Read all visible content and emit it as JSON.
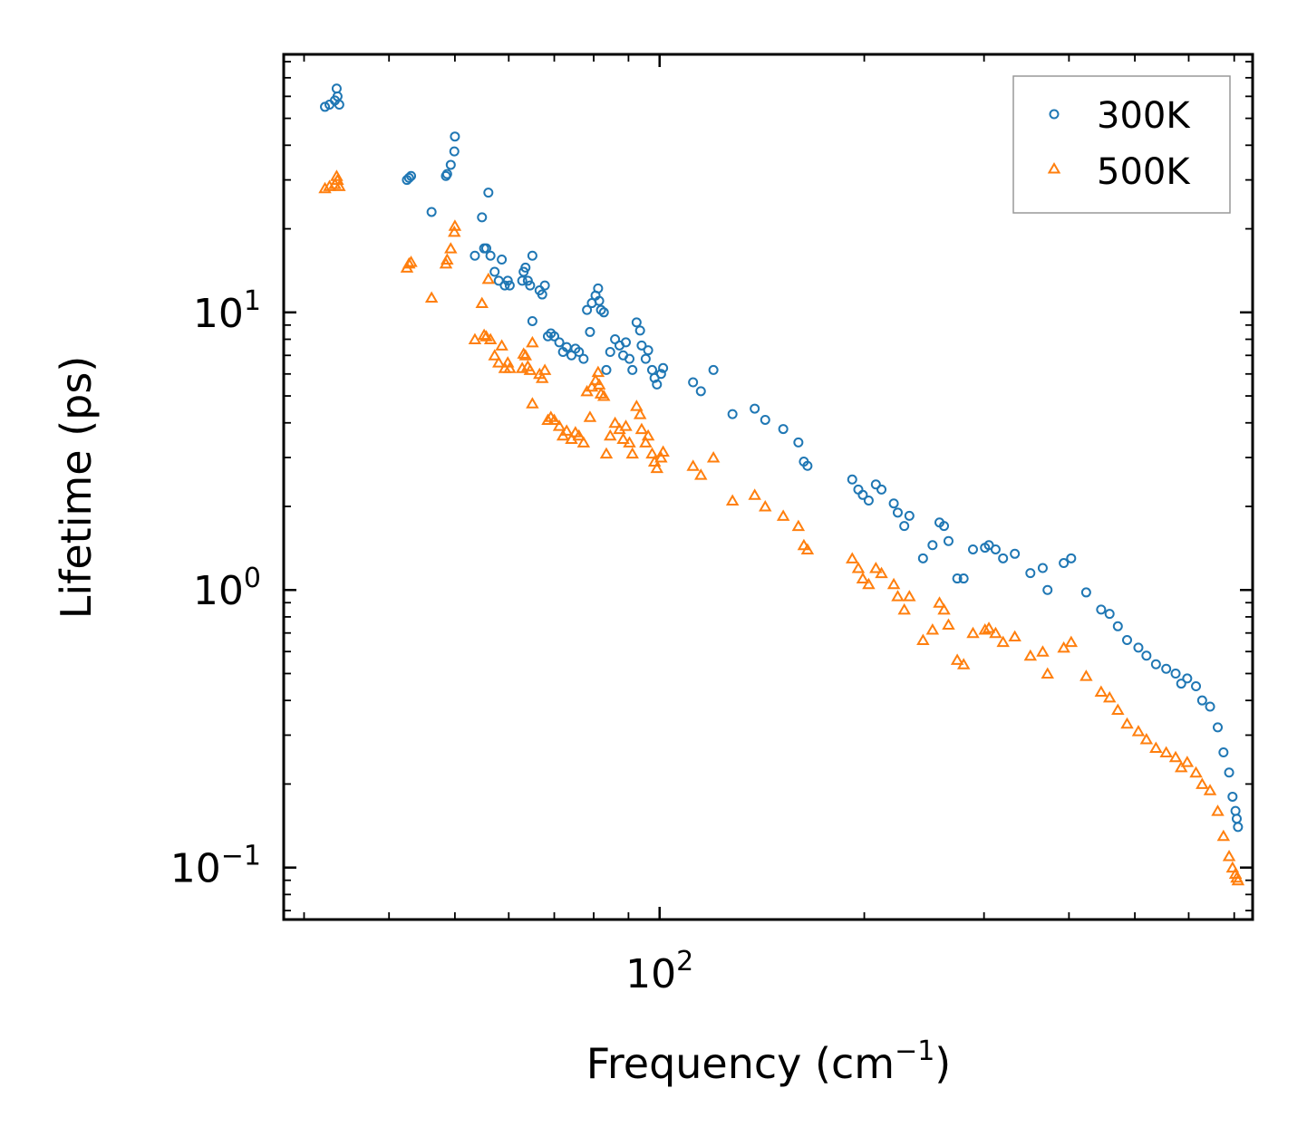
{
  "chart_data": {
    "type": "scatter",
    "title": "",
    "xlabel": "Frequency (cm",
    "xlabel_sup": "−1",
    "xlabel_end": ")",
    "ylabel": "Lifetime (ps)",
    "xscale": "log",
    "yscale": "log",
    "xlim": [
      28,
      745
    ],
    "ylim": [
      0.065,
      85
    ],
    "x_ticks": [
      {
        "base": "10",
        "exp": "2",
        "value": 100
      }
    ],
    "y_ticks": [
      {
        "base": "10",
        "exp": "−1",
        "value": 0.1
      },
      {
        "base": "10",
        "exp": "0",
        "value": 1
      },
      {
        "base": "10",
        "exp": "1",
        "value": 10
      }
    ],
    "legend_position": "top-right",
    "colors": {
      "s300": "#1f77b4",
      "s500": "#ff7f0e"
    },
    "series": [
      {
        "name": "300K",
        "marker": "circle-open",
        "color": "#1f77b4",
        "points": [
          [
            32.2,
            55
          ],
          [
            32.7,
            56
          ],
          [
            33.3,
            58
          ],
          [
            33.5,
            64
          ],
          [
            33.6,
            60
          ],
          [
            33.8,
            56
          ],
          [
            42.5,
            30
          ],
          [
            42.8,
            30.5
          ],
          [
            43.1,
            31
          ],
          [
            46.2,
            23
          ],
          [
            48.5,
            31
          ],
          [
            48.7,
            31.5
          ],
          [
            49.3,
            34
          ],
          [
            49.9,
            38
          ],
          [
            50,
            43
          ],
          [
            53.5,
            16
          ],
          [
            54.8,
            22
          ],
          [
            55.2,
            17
          ],
          [
            55.6,
            17
          ],
          [
            56,
            27
          ],
          [
            56.4,
            16
          ],
          [
            57.2,
            14
          ],
          [
            58,
            13
          ],
          [
            58.6,
            15.5
          ],
          [
            59.2,
            12.5
          ],
          [
            59.8,
            13
          ],
          [
            60.2,
            12.5
          ],
          [
            62.8,
            13
          ],
          [
            63.1,
            14
          ],
          [
            63.5,
            14.5
          ],
          [
            64,
            13
          ],
          [
            64.5,
            12.5
          ],
          [
            65,
            16
          ],
          [
            66.6,
            12
          ],
          [
            67.2,
            11.6
          ],
          [
            67.8,
            12.5
          ],
          [
            65,
            9.3
          ],
          [
            68.5,
            8.2
          ],
          [
            69.2,
            8.4
          ],
          [
            70,
            8.2
          ],
          [
            71.2,
            7.8
          ],
          [
            72.1,
            7.2
          ],
          [
            73,
            7.5
          ],
          [
            74.2,
            7
          ],
          [
            75.2,
            7.4
          ],
          [
            76.1,
            7.2
          ],
          [
            77.3,
            6.8
          ],
          [
            78.2,
            10.2
          ],
          [
            79,
            8.5
          ],
          [
            79.5,
            10.8
          ],
          [
            80.5,
            11.5
          ],
          [
            81.2,
            12.2
          ],
          [
            81.5,
            11
          ],
          [
            82,
            10.2
          ],
          [
            82.8,
            10
          ],
          [
            83.5,
            6.2
          ],
          [
            84.6,
            7.2
          ],
          [
            86,
            8
          ],
          [
            87.3,
            7.6
          ],
          [
            88.4,
            7
          ],
          [
            89.2,
            7.8
          ],
          [
            90.3,
            6.8
          ],
          [
            91.2,
            6.2
          ],
          [
            92.5,
            9.2
          ],
          [
            93.6,
            8.6
          ],
          [
            94.1,
            7.6
          ],
          [
            95.4,
            6.8
          ],
          [
            96.2,
            7.3
          ],
          [
            97.5,
            6.2
          ],
          [
            98.3,
            5.8
          ],
          [
            99.1,
            5.5
          ],
          [
            100.5,
            6
          ],
          [
            101.2,
            6.3
          ],
          [
            112,
            5.6
          ],
          [
            115,
            5.2
          ],
          [
            120,
            6.2
          ],
          [
            128,
            4.3
          ],
          [
            138,
            4.5
          ],
          [
            143,
            4.1
          ],
          [
            152,
            3.8
          ],
          [
            160,
            3.4
          ],
          [
            163,
            2.9
          ],
          [
            165,
            2.8
          ],
          [
            192,
            2.5
          ],
          [
            196,
            2.3
          ],
          [
            199,
            2.2
          ],
          [
            203,
            2.1
          ],
          [
            208,
            2.4
          ],
          [
            212,
            2.3
          ],
          [
            221,
            2.05
          ],
          [
            224,
            1.9
          ],
          [
            229,
            1.7
          ],
          [
            233,
            1.85
          ],
          [
            244,
            1.3
          ],
          [
            252,
            1.45
          ],
          [
            258,
            1.75
          ],
          [
            262,
            1.7
          ],
          [
            266,
            1.5
          ],
          [
            274,
            1.1
          ],
          [
            280,
            1.1
          ],
          [
            289,
            1.4
          ],
          [
            301,
            1.42
          ],
          [
            305,
            1.45
          ],
          [
            312,
            1.4
          ],
          [
            320,
            1.3
          ],
          [
            333,
            1.35
          ],
          [
            351,
            1.15
          ],
          [
            366,
            1.2
          ],
          [
            372,
            1
          ],
          [
            393,
            1.25
          ],
          [
            403,
            1.3
          ],
          [
            424,
            0.98
          ],
          [
            446,
            0.85
          ],
          [
            459,
            0.82
          ],
          [
            472,
            0.74
          ],
          [
            487,
            0.66
          ],
          [
            506,
            0.62
          ],
          [
            520,
            0.58
          ],
          [
            537,
            0.54
          ],
          [
            556,
            0.52
          ],
          [
            574,
            0.5
          ],
          [
            585,
            0.46
          ],
          [
            597,
            0.48
          ],
          [
            615,
            0.45
          ],
          [
            628,
            0.4
          ],
          [
            645,
            0.38
          ],
          [
            662,
            0.32
          ],
          [
            675,
            0.26
          ],
          [
            688,
            0.22
          ],
          [
            696,
            0.18
          ],
          [
            703,
            0.16
          ],
          [
            706,
            0.15
          ],
          [
            709,
            0.14
          ]
        ]
      },
      {
        "name": "500K",
        "marker": "triangle-open",
        "color": "#ff7f0e",
        "points": [
          [
            32.2,
            28
          ],
          [
            32.7,
            28.5
          ],
          [
            33.3,
            29
          ],
          [
            33.5,
            31
          ],
          [
            33.6,
            30
          ],
          [
            33.8,
            28.5
          ],
          [
            42.5,
            14.5
          ],
          [
            42.8,
            15
          ],
          [
            43.1,
            15.2
          ],
          [
            46.2,
            11.3
          ],
          [
            48.5,
            15
          ],
          [
            48.7,
            15.5
          ],
          [
            49.3,
            17
          ],
          [
            49.9,
            19.5
          ],
          [
            50,
            20.5
          ],
          [
            53.5,
            8
          ],
          [
            54.8,
            10.8
          ],
          [
            55.2,
            8.3
          ],
          [
            55.6,
            8.2
          ],
          [
            56,
            13.2
          ],
          [
            56.4,
            8
          ],
          [
            57.2,
            7
          ],
          [
            58,
            6.6
          ],
          [
            58.6,
            7.6
          ],
          [
            59.2,
            6.3
          ],
          [
            59.8,
            6.6
          ],
          [
            60.2,
            6.3
          ],
          [
            62.8,
            6.3
          ],
          [
            63.1,
            7.1
          ],
          [
            63.5,
            7
          ],
          [
            64,
            6.4
          ],
          [
            64.5,
            6.2
          ],
          [
            65,
            7.8
          ],
          [
            66.6,
            6
          ],
          [
            67.2,
            5.8
          ],
          [
            67.8,
            6.2
          ],
          [
            65,
            4.7
          ],
          [
            68.5,
            4.1
          ],
          [
            69.2,
            4.2
          ],
          [
            70,
            4.1
          ],
          [
            71.2,
            3.9
          ],
          [
            72.1,
            3.6
          ],
          [
            73,
            3.75
          ],
          [
            74.2,
            3.5
          ],
          [
            75.2,
            3.7
          ],
          [
            76.1,
            3.6
          ],
          [
            77.3,
            3.4
          ],
          [
            78.2,
            5.2
          ],
          [
            79,
            4.2
          ],
          [
            79.5,
            5.4
          ],
          [
            80.5,
            5.7
          ],
          [
            81.2,
            6.1
          ],
          [
            81.5,
            5.5
          ],
          [
            82,
            5.1
          ],
          [
            82.8,
            5
          ],
          [
            83.5,
            3.1
          ],
          [
            84.6,
            3.6
          ],
          [
            86,
            4
          ],
          [
            87.3,
            3.8
          ],
          [
            88.4,
            3.5
          ],
          [
            89.2,
            3.9
          ],
          [
            90.3,
            3.4
          ],
          [
            91.2,
            3.1
          ],
          [
            92.5,
            4.6
          ],
          [
            93.6,
            4.3
          ],
          [
            94.1,
            3.8
          ],
          [
            95.4,
            3.4
          ],
          [
            96.2,
            3.6
          ],
          [
            97.5,
            3.1
          ],
          [
            98.3,
            2.9
          ],
          [
            99.1,
            2.75
          ],
          [
            100.5,
            3
          ],
          [
            101.2,
            3.15
          ],
          [
            112,
            2.8
          ],
          [
            115,
            2.6
          ],
          [
            120,
            3
          ],
          [
            128,
            2.1
          ],
          [
            138,
            2.2
          ],
          [
            143,
            2
          ],
          [
            152,
            1.85
          ],
          [
            160,
            1.7
          ],
          [
            163,
            1.45
          ],
          [
            165,
            1.4
          ],
          [
            192,
            1.3
          ],
          [
            196,
            1.2
          ],
          [
            199,
            1.1
          ],
          [
            203,
            1.05
          ],
          [
            208,
            1.2
          ],
          [
            212,
            1.15
          ],
          [
            221,
            1.05
          ],
          [
            224,
            0.95
          ],
          [
            229,
            0.85
          ],
          [
            233,
            0.95
          ],
          [
            244,
            0.66
          ],
          [
            252,
            0.72
          ],
          [
            258,
            0.9
          ],
          [
            262,
            0.85
          ],
          [
            266,
            0.75
          ],
          [
            274,
            0.56
          ],
          [
            280,
            0.54
          ],
          [
            289,
            0.7
          ],
          [
            301,
            0.72
          ],
          [
            305,
            0.73
          ],
          [
            312,
            0.7
          ],
          [
            320,
            0.65
          ],
          [
            333,
            0.68
          ],
          [
            351,
            0.58
          ],
          [
            366,
            0.6
          ],
          [
            372,
            0.5
          ],
          [
            393,
            0.62
          ],
          [
            403,
            0.65
          ],
          [
            424,
            0.49
          ],
          [
            446,
            0.43
          ],
          [
            459,
            0.41
          ],
          [
            472,
            0.37
          ],
          [
            487,
            0.33
          ],
          [
            506,
            0.31
          ],
          [
            520,
            0.29
          ],
          [
            537,
            0.27
          ],
          [
            556,
            0.26
          ],
          [
            574,
            0.25
          ],
          [
            585,
            0.23
          ],
          [
            597,
            0.24
          ],
          [
            615,
            0.22
          ],
          [
            628,
            0.2
          ],
          [
            645,
            0.19
          ],
          [
            662,
            0.16
          ],
          [
            675,
            0.13
          ],
          [
            688,
            0.11
          ],
          [
            696,
            0.1
          ],
          [
            703,
            0.095
          ],
          [
            706,
            0.092
          ],
          [
            709,
            0.09
          ]
        ]
      }
    ]
  }
}
